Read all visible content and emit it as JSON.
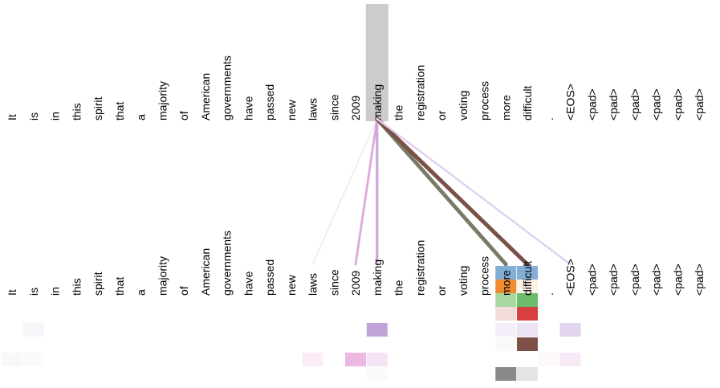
{
  "tokens": [
    "It",
    "is",
    "in",
    "this",
    "spirit",
    "that",
    "a",
    "majority",
    "of",
    "American",
    "governments",
    "have",
    "passed",
    "new",
    "laws",
    "since",
    "2009",
    "making",
    "the",
    "registration",
    "or",
    "voting",
    "process",
    "more",
    "difficult",
    ".",
    "<EOS>",
    "<pad>",
    "<pad>",
    "<pad>",
    "<pad>",
    "<pad>",
    "<pad>"
  ],
  "selected_index": 17,
  "attention_edges": [
    {
      "target": 14,
      "color": "#f5e6f2",
      "weight": 0.15
    },
    {
      "target": 16,
      "color": "#e0a8da",
      "weight": 0.45
    },
    {
      "target": 17,
      "color": "#c8a8d8",
      "weight": 0.55
    },
    {
      "target": 23,
      "color": "#7a7a66",
      "weight": 0.95
    },
    {
      "target": 24,
      "color": "#7a5048",
      "weight": 1.0
    },
    {
      "target": 26,
      "color": "#e0d0ee",
      "weight": 0.35
    }
  ],
  "head_cells": [
    {
      "target": 23,
      "row": 0,
      "color": "#82aed6"
    },
    {
      "target": 24,
      "row": 0,
      "color": "#82aed6"
    },
    {
      "target": 23,
      "row": 1,
      "color": "#f28a30"
    },
    {
      "target": 24,
      "row": 1,
      "color": "#fef2e6"
    },
    {
      "target": 23,
      "row": 2,
      "color": "#a6d8a0"
    },
    {
      "target": 24,
      "row": 2,
      "color": "#6cbc6c"
    },
    {
      "target": 23,
      "row": 3,
      "color": "#f5dada"
    },
    {
      "target": 24,
      "row": 3,
      "color": "#d84040"
    },
    {
      "target": 1,
      "row": 4,
      "color": "#f8f5fa"
    },
    {
      "target": 17,
      "row": 4,
      "color": "#c0a4d8"
    },
    {
      "target": 23,
      "row": 4,
      "color": "#f5eef8"
    },
    {
      "target": 24,
      "row": 4,
      "color": "#ebe2f4"
    },
    {
      "target": 26,
      "row": 4,
      "color": "#e2d6ee"
    },
    {
      "target": 23,
      "row": 5,
      "color": "#fbf8f8"
    },
    {
      "target": 24,
      "row": 5,
      "color": "#7e5048"
    },
    {
      "target": 0,
      "row": 6,
      "color": "#f8f8f8"
    },
    {
      "target": 1,
      "row": 6,
      "color": "#fafafa"
    },
    {
      "target": 14,
      "row": 6,
      "color": "#fbecf8"
    },
    {
      "target": 16,
      "row": 6,
      "color": "#eab8e0"
    },
    {
      "target": 17,
      "row": 6,
      "color": "#f4e4f4"
    },
    {
      "target": 25,
      "row": 6,
      "color": "#fcf8fc"
    },
    {
      "target": 26,
      "row": 6,
      "color": "#f6eaf6"
    },
    {
      "target": 17,
      "row": 7,
      "color": "#fafafa"
    },
    {
      "target": 23,
      "row": 7,
      "color": "#8a8a8a"
    },
    {
      "target": 24,
      "row": 7,
      "color": "#e4e4e4"
    }
  ]
}
